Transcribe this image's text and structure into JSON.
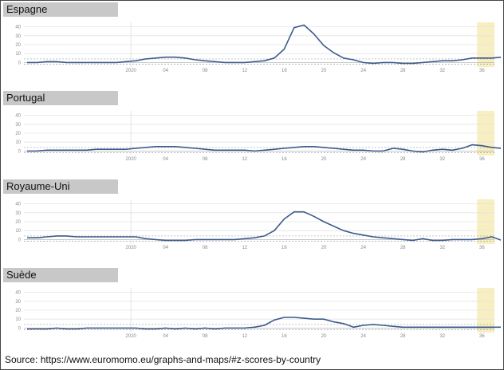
{
  "colors": {
    "line": "#3e5a8c",
    "highlight": "#f7efc0",
    "grid": "#e4e4e4",
    "zero_line": "#b5b5b5",
    "band": "#a0a0a0"
  },
  "chart_data": [
    {
      "type": "line",
      "title": "Espagne",
      "ylim": [
        -5,
        45
      ],
      "yticks": [
        0,
        10,
        20,
        30,
        40
      ],
      "x_ticks": [
        {
          "week": 2020,
          "label": "2020"
        },
        {
          "week": 4,
          "label": "04"
        },
        {
          "week": 8,
          "label": "08"
        },
        {
          "week": 12,
          "label": "12"
        },
        {
          "week": 16,
          "label": "16"
        },
        {
          "week": 20,
          "label": "20"
        },
        {
          "week": 24,
          "label": "24"
        },
        {
          "week": 28,
          "label": "28"
        },
        {
          "week": 32,
          "label": "32"
        },
        {
          "week": 36,
          "label": "36"
        }
      ],
      "x": [
        "2019-W42",
        "2019-W43",
        "2019-W44",
        "2019-W45",
        "2019-W46",
        "2019-W47",
        "2019-W48",
        "2019-W49",
        "2019-W50",
        "2019-W51",
        "2019-W52",
        "2020-W01",
        "2020-W02",
        "2020-W03",
        "2020-W04",
        "2020-W05",
        "2020-W06",
        "2020-W07",
        "2020-W08",
        "2020-W09",
        "2020-W10",
        "2020-W11",
        "2020-W12",
        "2020-W13",
        "2020-W14",
        "2020-W15",
        "2020-W16",
        "2020-W17",
        "2020-W18",
        "2020-W19",
        "2020-W20",
        "2020-W21",
        "2020-W22",
        "2020-W23",
        "2020-W24",
        "2020-W25",
        "2020-W26",
        "2020-W27",
        "2020-W28",
        "2020-W29",
        "2020-W30",
        "2020-W31",
        "2020-W32",
        "2020-W33",
        "2020-W34",
        "2020-W35",
        "2020-W36",
        "2020-W37",
        "2020-W38"
      ],
      "series": [
        {
          "values": [
            0,
            0,
            1,
            1,
            0,
            0,
            0,
            0,
            0,
            0,
            1,
            2,
            4,
            5,
            6,
            6,
            5,
            3,
            2,
            1,
            0,
            0,
            0,
            1,
            2,
            5,
            15,
            39,
            42,
            32,
            19,
            11,
            5,
            3,
            0,
            -1,
            0,
            0,
            -1,
            -1,
            0,
            1,
            2,
            2,
            3,
            5,
            5,
            5,
            6
          ]
        }
      ]
    },
    {
      "type": "line",
      "title": "Portugal",
      "ylim": [
        -5,
        45
      ],
      "yticks": [
        0,
        10,
        20,
        30,
        40
      ],
      "x_ticks": [
        {
          "week": 2020,
          "label": "2020"
        },
        {
          "week": 4,
          "label": "04"
        },
        {
          "week": 8,
          "label": "08"
        },
        {
          "week": 12,
          "label": "12"
        },
        {
          "week": 16,
          "label": "16"
        },
        {
          "week": 20,
          "label": "20"
        },
        {
          "week": 24,
          "label": "24"
        },
        {
          "week": 28,
          "label": "28"
        },
        {
          "week": 32,
          "label": "32"
        },
        {
          "week": 36,
          "label": "36"
        }
      ],
      "x": [
        "2019-W42",
        "2019-W43",
        "2019-W44",
        "2019-W45",
        "2019-W46",
        "2019-W47",
        "2019-W48",
        "2019-W49",
        "2019-W50",
        "2019-W51",
        "2019-W52",
        "2020-W01",
        "2020-W02",
        "2020-W03",
        "2020-W04",
        "2020-W05",
        "2020-W06",
        "2020-W07",
        "2020-W08",
        "2020-W09",
        "2020-W10",
        "2020-W11",
        "2020-W12",
        "2020-W13",
        "2020-W14",
        "2020-W15",
        "2020-W16",
        "2020-W17",
        "2020-W18",
        "2020-W19",
        "2020-W20",
        "2020-W21",
        "2020-W22",
        "2020-W23",
        "2020-W24",
        "2020-W25",
        "2020-W26",
        "2020-W27",
        "2020-W28",
        "2020-W29",
        "2020-W30",
        "2020-W31",
        "2020-W32",
        "2020-W33",
        "2020-W34",
        "2020-W35",
        "2020-W36",
        "2020-W37",
        "2020-W38"
      ],
      "series": [
        {
          "values": [
            0,
            0,
            1,
            1,
            1,
            1,
            1,
            2,
            2,
            2,
            2,
            3,
            4,
            5,
            5,
            5,
            4,
            3,
            2,
            1,
            1,
            1,
            1,
            0,
            1,
            2,
            3,
            4,
            5,
            5,
            4,
            3,
            2,
            1,
            1,
            0,
            0,
            3,
            2,
            0,
            -1,
            1,
            2,
            1,
            3,
            7,
            6,
            4,
            3
          ]
        }
      ]
    },
    {
      "type": "line",
      "title": "Royaume-Uni",
      "ylim": [
        -5,
        45
      ],
      "yticks": [
        0,
        10,
        20,
        30,
        40
      ],
      "x_ticks": [
        {
          "week": 2020,
          "label": "2020"
        },
        {
          "week": 4,
          "label": "04"
        },
        {
          "week": 8,
          "label": "08"
        },
        {
          "week": 12,
          "label": "12"
        },
        {
          "week": 16,
          "label": "16"
        },
        {
          "week": 20,
          "label": "20"
        },
        {
          "week": 24,
          "label": "24"
        },
        {
          "week": 28,
          "label": "28"
        },
        {
          "week": 32,
          "label": "32"
        },
        {
          "week": 36,
          "label": "36"
        }
      ],
      "x": [
        "2019-W42",
        "2019-W43",
        "2019-W44",
        "2019-W45",
        "2019-W46",
        "2019-W47",
        "2019-W48",
        "2019-W49",
        "2019-W50",
        "2019-W51",
        "2019-W52",
        "2020-W01",
        "2020-W02",
        "2020-W03",
        "2020-W04",
        "2020-W05",
        "2020-W06",
        "2020-W07",
        "2020-W08",
        "2020-W09",
        "2020-W10",
        "2020-W11",
        "2020-W12",
        "2020-W13",
        "2020-W14",
        "2020-W15",
        "2020-W16",
        "2020-W17",
        "2020-W18",
        "2020-W19",
        "2020-W20",
        "2020-W21",
        "2020-W22",
        "2020-W23",
        "2020-W24",
        "2020-W25",
        "2020-W26",
        "2020-W27",
        "2020-W28",
        "2020-W29",
        "2020-W30",
        "2020-W31",
        "2020-W32",
        "2020-W33",
        "2020-W34",
        "2020-W35",
        "2020-W36",
        "2020-W37",
        "2020-W38"
      ],
      "series": [
        {
          "values": [
            2,
            2,
            3,
            4,
            4,
            3,
            3,
            3,
            3,
            3,
            3,
            3,
            1,
            0,
            -1,
            -1,
            -1,
            0,
            0,
            0,
            0,
            0,
            1,
            2,
            4,
            10,
            23,
            31,
            31,
            26,
            20,
            15,
            10,
            7,
            5,
            3,
            2,
            1,
            0,
            -1,
            1,
            -1,
            -1,
            0,
            0,
            0,
            1,
            3,
            -1
          ]
        }
      ]
    },
    {
      "type": "line",
      "title": "Suède",
      "ylim": [
        -5,
        45
      ],
      "yticks": [
        0,
        10,
        20,
        30,
        40
      ],
      "x_ticks": [
        {
          "week": 2020,
          "label": "2020"
        },
        {
          "week": 4,
          "label": "04"
        },
        {
          "week": 8,
          "label": "08"
        },
        {
          "week": 12,
          "label": "12"
        },
        {
          "week": 16,
          "label": "16"
        },
        {
          "week": 20,
          "label": "20"
        },
        {
          "week": 24,
          "label": "24"
        },
        {
          "week": 28,
          "label": "28"
        },
        {
          "week": 32,
          "label": "32"
        },
        {
          "week": 36,
          "label": "36"
        }
      ],
      "x": [
        "2019-W42",
        "2019-W43",
        "2019-W44",
        "2019-W45",
        "2019-W46",
        "2019-W47",
        "2019-W48",
        "2019-W49",
        "2019-W50",
        "2019-W51",
        "2019-W52",
        "2020-W01",
        "2020-W02",
        "2020-W03",
        "2020-W04",
        "2020-W05",
        "2020-W06",
        "2020-W07",
        "2020-W08",
        "2020-W09",
        "2020-W10",
        "2020-W11",
        "2020-W12",
        "2020-W13",
        "2020-W14",
        "2020-W15",
        "2020-W16",
        "2020-W17",
        "2020-W18",
        "2020-W19",
        "2020-W20",
        "2020-W21",
        "2020-W22",
        "2020-W23",
        "2020-W24",
        "2020-W25",
        "2020-W26",
        "2020-W27",
        "2020-W28",
        "2020-W29",
        "2020-W30",
        "2020-W31",
        "2020-W32",
        "2020-W33",
        "2020-W34",
        "2020-W35",
        "2020-W36",
        "2020-W37",
        "2020-W38"
      ],
      "series": [
        {
          "values": [
            -1,
            -1,
            -1,
            0,
            -1,
            -1,
            0,
            0,
            0,
            0,
            0,
            0,
            -1,
            -1,
            0,
            -1,
            0,
            -1,
            0,
            -1,
            0,
            0,
            0,
            1,
            3,
            9,
            12,
            12,
            11,
            10,
            10,
            7,
            5,
            1,
            3,
            4,
            3,
            2,
            1,
            1,
            1,
            1,
            1,
            1,
            1,
            1,
            1,
            1,
            1
          ]
        }
      ]
    }
  ],
  "source": "Source: https://www.euromomo.eu/graphs-and-maps/#z-scores-by-country"
}
